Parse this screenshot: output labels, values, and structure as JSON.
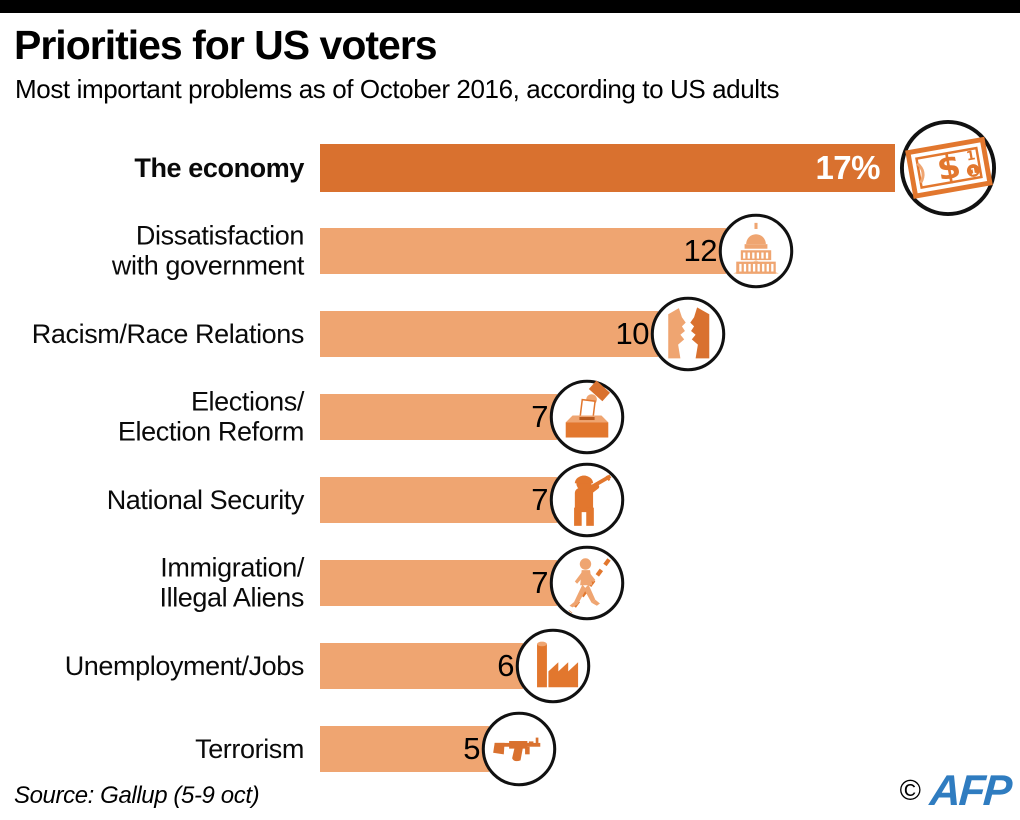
{
  "header": {
    "title": "Priorities for US voters",
    "subtitle": "Most important problems as of October 2016, according to US adults"
  },
  "footer": {
    "source": "Source: Gallup (5-9 oct)",
    "copyright": "©",
    "agency": "AFP"
  },
  "colors": {
    "top_bar": "#000000",
    "bar_dark": "#d9712f",
    "bar_light": "#efa571",
    "icon_orange": "#e2772e",
    "icon_dark_orange": "#d9712f",
    "icon_light_orange": "#efa571",
    "icon_pale_orange": "#f6cda8",
    "value_text_dark": "#000000",
    "value_text_light": "#ffffff",
    "afp_blue": "#2f7cc0"
  },
  "chart_data": {
    "type": "bar",
    "orientation": "horizontal",
    "title": "Priorities for US voters",
    "subtitle": "Most important problems as of October 2016, according to US adults",
    "unit": "percent of US adults",
    "xlim": [
      0,
      17
    ],
    "grid": false,
    "legend": "none",
    "categories": [
      "The economy",
      "Dissatisfaction with government",
      "Racism/Race Relations",
      "Elections/Election Reform",
      "National Security",
      "Immigration/Illegal Aliens",
      "Unemployment/Jobs",
      "Terrorism"
    ],
    "values": [
      17,
      12,
      10,
      7,
      7,
      7,
      6,
      5
    ],
    "rows": [
      {
        "label_lines": [
          "The economy"
        ],
        "value": 17,
        "display_value": "17%",
        "icon": "dollar-bill-icon",
        "emphasis": true
      },
      {
        "label_lines": [
          "Dissatisfaction",
          "with government"
        ],
        "value": 12,
        "display_value": "12",
        "icon": "capitol-icon",
        "emphasis": false
      },
      {
        "label_lines": [
          "Racism/Race Relations"
        ],
        "value": 10,
        "display_value": "10",
        "icon": "two-faces-icon",
        "emphasis": false
      },
      {
        "label_lines": [
          "Elections/",
          "Election Reform"
        ],
        "value": 7,
        "display_value": "7",
        "icon": "ballot-box-icon",
        "emphasis": false
      },
      {
        "label_lines": [
          "National Security"
        ],
        "value": 7,
        "display_value": "7",
        "icon": "soldier-icon",
        "emphasis": false
      },
      {
        "label_lines": [
          "Immigration/",
          "Illegal Aliens"
        ],
        "value": 7,
        "display_value": "7",
        "icon": "walking-person-icon",
        "emphasis": false
      },
      {
        "label_lines": [
          "Unemployment/Jobs"
        ],
        "value": 6,
        "display_value": "6",
        "icon": "factory-icon",
        "emphasis": false
      },
      {
        "label_lines": [
          "Terrorism"
        ],
        "value": 5,
        "display_value": "5",
        "icon": "rifle-icon",
        "emphasis": false
      }
    ]
  }
}
